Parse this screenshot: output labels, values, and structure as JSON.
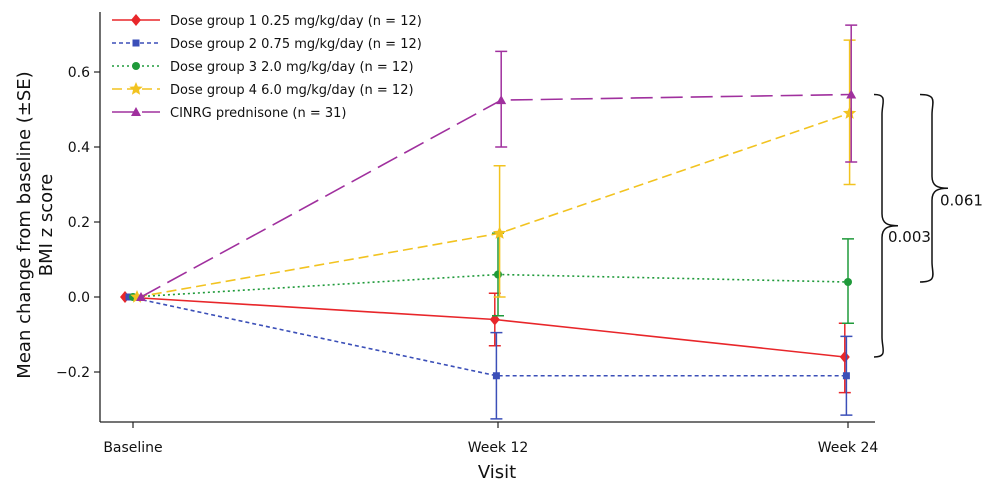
{
  "chart_data": {
    "type": "line",
    "xlabel": "Visit",
    "ylabel_line1": "Mean change from baseline (±SE)",
    "ylabel_line2": "BMI z score",
    "categories": [
      "Baseline",
      "Week 12",
      "Week 24"
    ],
    "ylim": [
      -0.33,
      0.75
    ],
    "yticks": [
      -0.2,
      0.0,
      0.2,
      0.4,
      0.6
    ],
    "ytick_labels": [
      "−0.2",
      "0.0",
      "0.2",
      "0.4",
      "0.6"
    ],
    "grid": false,
    "legend_position": "top-left",
    "series": [
      {
        "name": "Dose group 1 0.25 mg/kg/day (n = 12)",
        "color": "#e8262a",
        "dash": "solid",
        "marker": "diamond",
        "values": [
          0.0,
          -0.06,
          -0.16
        ],
        "err_low": [
          null,
          -0.13,
          -0.255
        ],
        "err_high": [
          null,
          0.01,
          -0.07
        ]
      },
      {
        "name": "Dose group 2 0.75 mg/kg/day (n = 12)",
        "color": "#3b4fb8",
        "dash": "short",
        "marker": "square",
        "values": [
          0.0,
          -0.21,
          -0.21
        ],
        "err_low": [
          null,
          -0.325,
          -0.315
        ],
        "err_high": [
          null,
          -0.095,
          -0.105
        ]
      },
      {
        "name": "Dose group 3 2.0 mg/kg/day (n = 12)",
        "color": "#1f9a3a",
        "dash": "dotted",
        "marker": "circle",
        "values": [
          0.0,
          0.06,
          0.04
        ],
        "err_low": [
          null,
          -0.05,
          -0.07
        ],
        "err_high": [
          null,
          0.17,
          0.155
        ]
      },
      {
        "name": "Dose group 4 6.0 mg/kg/day (n = 12)",
        "color": "#f2c320",
        "dash": "dashed",
        "marker": "star",
        "values": [
          0.0,
          0.17,
          0.49
        ],
        "err_low": [
          null,
          0.0,
          0.3
        ],
        "err_high": [
          null,
          0.35,
          0.685
        ]
      },
      {
        "name": "CINRG prednisone (n = 31)",
        "color": "#a0309e",
        "dash": "long",
        "marker": "triangle",
        "values": [
          0.0,
          0.525,
          0.54
        ],
        "err_low": [
          null,
          0.4,
          0.36
        ],
        "err_high": [
          null,
          0.655,
          0.725
        ]
      }
    ],
    "annotations": [
      {
        "text": "0.003",
        "y_top": 0.54,
        "y_bottom": -0.16
      },
      {
        "text": "0.061",
        "y_top": 0.54,
        "y_bottom": 0.04
      }
    ]
  }
}
